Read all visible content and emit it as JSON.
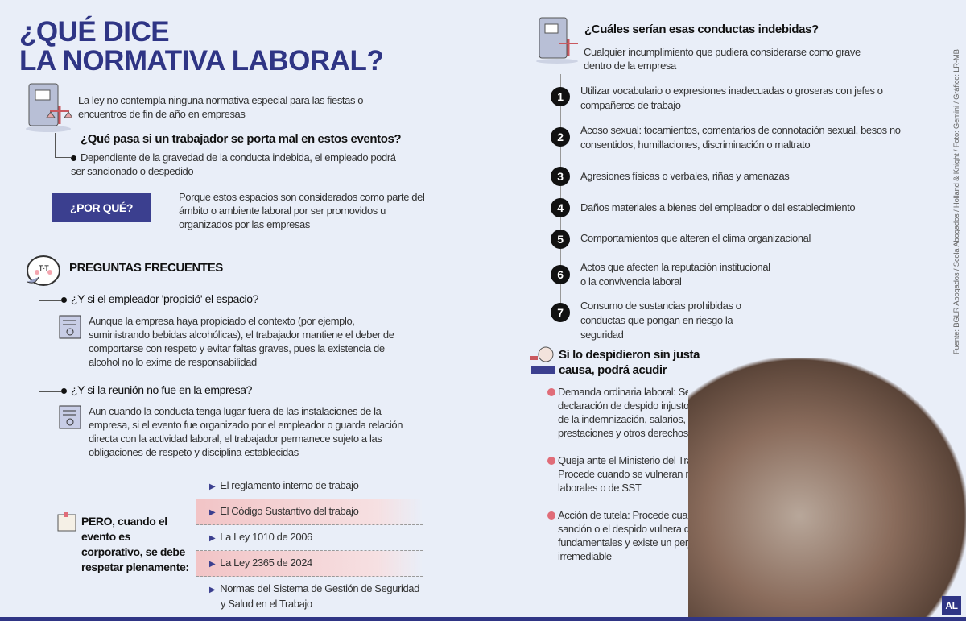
{
  "title": {
    "line1": "¿QUÉ DICE",
    "line2": "LA NORMATIVA LABORAL?"
  },
  "intro": "La ley no contempla ninguna normativa especial para las fiestas o encuentros de fin de año en empresas",
  "q1": {
    "question": "¿Qué pasa si un trabajador se porta mal en estos eventos?",
    "answer": "Dependiente de la gravedad de la conducta indebida, el empleado podrá ser sancionado o despedido"
  },
  "porque": {
    "label": "¿POR QUÉ?",
    "text": "Porque estos espacios son considerados como parte del ámbito o ambiente laboral por ser promovidos u organizados por las empresas"
  },
  "faq": {
    "heading": "PREGUNTAS FRECUENTES",
    "items": [
      {
        "question": "¿Y si el empleador 'propició' el espacio?",
        "answer": "Aunque la empresa haya propiciado el contexto (por ejemplo, suministrando bebidas alcohólicas), el trabajador mantiene el deber de comportarse con respeto y evitar faltas graves, pues la existencia de alcohol no lo exime de responsabilidad"
      },
      {
        "question": "¿Y si la reunión no fue en la empresa?",
        "answer": "Aun cuando la conducta tenga lugar fuera de las instalaciones de la empresa, si el evento fue organizado por el empleador o guarda relación directa con la actividad laboral, el trabajador permanece sujeto a las obligaciones de respeto y disciplina establecidas"
      }
    ]
  },
  "pero": {
    "text": "PERO, cuando el evento es corporativo, se debe respetar plenamente:",
    "items": [
      "El reglamento interno de trabajo",
      "El Código Sustantivo del trabajo",
      "La Ley 1010 de 2006",
      "La Ley 2365 de 2024",
      "Normas del Sistema de Gestión de Seguridad y Salud en el Trabajo"
    ]
  },
  "conductas": {
    "heading": "¿Cuáles serían esas conductas indebidas?",
    "subheading": "Cualquier incumplimiento que pudiera considerarse como grave dentro de la empresa",
    "items": [
      {
        "n": "1",
        "text": "Utilizar vocabulario o expresiones inadecuadas o groseras con jefes o compañeros de trabajo"
      },
      {
        "n": "2",
        "text": "Acoso sexual: tocamientos, comentarios de connotación sexual, besos no consentidos, humillaciones, discriminación o maltrato"
      },
      {
        "n": "3",
        "text": "Agresiones físicas o verbales, riñas y amenazas"
      },
      {
        "n": "4",
        "text": "Daños materiales a bienes del empleador o del establecimiento"
      },
      {
        "n": "5",
        "text": "Comportamientos que alteren el clima organizacional"
      },
      {
        "n": "6",
        "text": "Actos que afecten la reputación institucional o la convivencia laboral"
      },
      {
        "n": "7",
        "text": "Consumo de sustancias prohibidas o conductas que pongan en riesgo la seguridad"
      }
    ]
  },
  "despido": {
    "heading": "Si lo despidieron sin justa causa, podrá acudir",
    "items": [
      "Demanda ordinaria laboral: Se solicita la declaración de despido injusto, el pago de la indemnización, salarios, prestaciones y otros derechos",
      "Queja ante el Ministerio del Trabajo: Procede cuando se vulneran normas laborales o de SST",
      "Acción de tutela: Procede cuando la sanción o el despido vulnera derechos fundamentales y existe un perjuicio irremediable"
    ]
  },
  "source": "Fuente: BGLR Abogados / Scola Abogados / Holland & Knight / Foto: Gemini / Gráfico: LR-MB",
  "logo": "AL",
  "colors": {
    "navy": "#2f3585",
    "box": "#3b3f8f",
    "pink": "#e06c78",
    "background": "#e9eef8"
  }
}
